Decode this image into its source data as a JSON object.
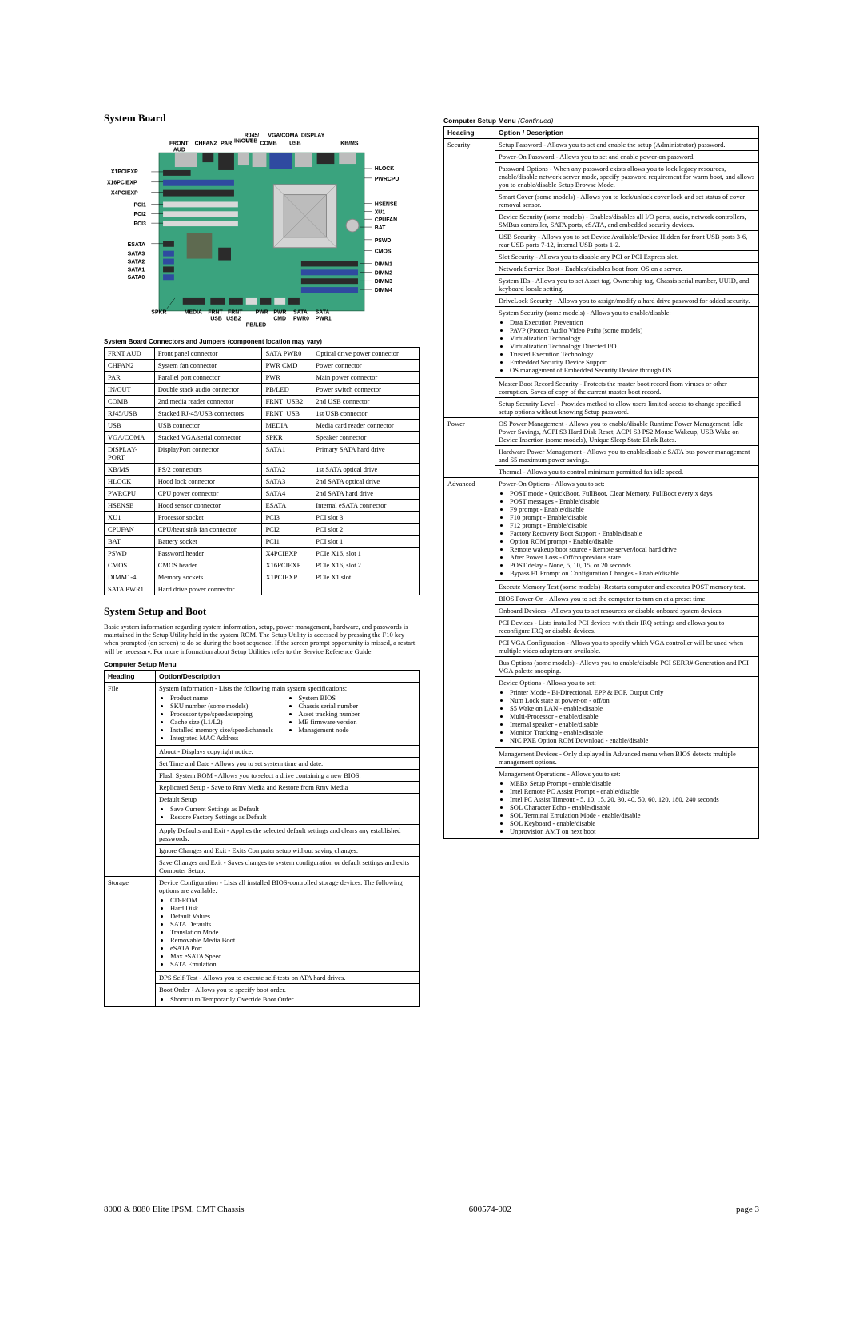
{
  "colors": {
    "board_pcb": "#3aa37e",
    "board_pcb_dark": "#2b7355",
    "chip_large": "#5e6a50",
    "chip_small": "#2b2b2b",
    "slot_blue": "#2f4aa0",
    "slot_black": "#2a2a2a",
    "slot_white": "#d9d9d9",
    "port_silver": "#bcbcbc",
    "battery": "#c8c8c8",
    "heatsink": "#d4d4d4",
    "text": "#000000",
    "bg": "#ffffff",
    "border": "#000000"
  },
  "left": {
    "section_title": "System Board",
    "board_caption": "System Board Connectors and Jumpers (component location may vary)",
    "board_labels_top": [
      "RJ45/",
      "USB",
      "VGA/COMA",
      "DISPLAY"
    ],
    "board_labels_top2": [
      "FRONT",
      "CHFAN2",
      "PAR",
      "IN/OUT",
      "COMB",
      "USB",
      "KB/MS"
    ],
    "board_labels_pre": "AUD",
    "board_labels_left": [
      "X1PCIEXP",
      "X16PCIEXP",
      "X4PCIEXP",
      "PCI1",
      "PCI2",
      "PCI3",
      "ESATA",
      "SATA3",
      "SATA2",
      "SATA1",
      "SATA0",
      "SPKR"
    ],
    "board_labels_right": [
      "HLOCK",
      "PWRCPU",
      "HSENSE",
      "XU1",
      "CPUFAN",
      "BAT",
      "PSWD",
      "CMOS",
      "DIMM1",
      "DIMM2",
      "DIMM3",
      "DIMM4"
    ],
    "board_labels_bottom": [
      "MEDIA",
      "FRNT",
      "FRNT",
      "PWR",
      "PWR",
      "SATA",
      "SATA"
    ],
    "board_labels_bottom2": [
      "USB",
      "USB2",
      "CMD",
      "PWR0",
      "PWR1"
    ],
    "board_labels_bottom3": "PB/LED",
    "connectors": [
      [
        "FRNT AUD",
        "Front panel connector",
        "SATA PWR0",
        "Optical drive power connector"
      ],
      [
        "CHFAN2",
        "System fan connector",
        "PWR CMD",
        "Power connector"
      ],
      [
        "PAR",
        "Parallel port connector",
        "PWR",
        "Main power connector"
      ],
      [
        "IN/OUT",
        "Double stack audio connector",
        "PB/LED",
        "Power switch connector"
      ],
      [
        "COMB",
        "2nd media reader connector",
        "FRNT_USB2",
        "2nd USB connector"
      ],
      [
        "RJ45/USB",
        "Stacked RJ-45/USB connectors",
        "FRNT_USB",
        "1st USB connector"
      ],
      [
        "USB",
        "USB connector",
        "MEDIA",
        "Media card reader connector"
      ],
      [
        "VGA/COMA",
        "Stacked VGA/serial connector",
        "SPKR",
        "Speaker connector"
      ],
      [
        "DISPLAY-PORT",
        "DisplayPort connector",
        "SATA1",
        "Primary SATA hard drive"
      ],
      [
        "KB/MS",
        "PS/2 connectors",
        "SATA2",
        "1st SATA optical drive"
      ],
      [
        "HLOCK",
        "Hood lock connector",
        "SATA3",
        "2nd SATA optical drive"
      ],
      [
        "PWRCPU",
        "CPU power connector",
        "SATA4",
        "2nd SATA hard drive"
      ],
      [
        "HSENSE",
        "Hood sensor connector",
        "ESATA",
        "Internal eSATA connector"
      ],
      [
        "XU1",
        "Processor socket",
        "PCI3",
        "PCI slot 3"
      ],
      [
        "CPUFAN",
        "CPU/heat sink fan connector",
        "PCI2",
        "PCI slot 2"
      ],
      [
        "BAT",
        "Battery socket",
        "PCI1",
        "PCI slot 1"
      ],
      [
        "PSWD",
        "Password header",
        "X4PCIEXP",
        "PCIe X16, slot 1"
      ],
      [
        "CMOS",
        "CMOS header",
        "X16PCIEXP",
        "PCIe X16, slot 2"
      ],
      [
        "DIMM1-4",
        "Memory sockets",
        "X1PCIEXP",
        "PCIe X1 slot"
      ],
      [
        "SATA PWR1",
        "Hard drive power connector",
        "",
        ""
      ]
    ],
    "setup_title": "System Setup and Boot",
    "setup_body": "Basic system information regarding system information, setup, power management, hardware, and passwords is maintained in the Setup Utility held in the system ROM. The Setup Utility is accessed by pressing the F10 key when prompted (on screen) to do so during the boot sequence. If the screen prompt opportunity is missed, a restart will be necessary. For more information about Setup Utilities refer to the Service Reference Guide.",
    "setup_body_italic": "Service Reference Guide.",
    "menu_title": "Computer Setup Menu",
    "th_heading": "Heading",
    "th_option": "Option/Description",
    "rows": [
      {
        "heading": "File",
        "cells": [
          {
            "lead": "System Information - Lists the following main system specifications:",
            "cols": [
              [
                "Product name",
                "SKU number (some models)",
                "Processor type/speed/stepping",
                "Cache size (L1/L2)",
                "Installed memory size/speed/channels",
                "Integrated MAC Address"
              ],
              [
                "System BIOS",
                "Chassis serial number",
                "Asset tracking number",
                "ME firmware version",
                "Management node"
              ]
            ]
          },
          {
            "lead": "About - Displays copyright notice."
          },
          {
            "lead": "Set Time and Date - Allows you to set system time and date."
          },
          {
            "lead": "Flash System ROM - Allows you to select a drive containing a new BIOS."
          },
          {
            "lead": "Replicated Setup - Save to Rmv Media and Restore from Rmv Media"
          },
          {
            "lead": "Default Setup",
            "bullets": [
              "Save Current Settings as Default",
              "Restore Factory Settings as Default"
            ]
          },
          {
            "lead": "Apply Defaults and Exit - Applies the selected default settings and clears any established passwords."
          },
          {
            "lead": "Ignore Changes and Exit - Exits Computer setup without saving changes."
          },
          {
            "lead": "Save Changes and Exit - Saves changes to system configuration or default settings and exits Computer Setup."
          }
        ]
      },
      {
        "heading": "Storage",
        "cells": [
          {
            "lead": "Device Configuration - Lists all installed BIOS-controlled storage devices. The following options are available:",
            "bullets": [
              "CD-ROM",
              "Hard Disk",
              "Default Values",
              "SATA Defaults",
              "Translation Mode",
              "Removable Media Boot",
              "eSATA Port",
              "Max eSATA Speed",
              "SATA Emulation"
            ]
          },
          {
            "lead": "DPS Self-Test - Allows you to execute self-tests on ATA hard drives."
          },
          {
            "lead": "Boot Order - Allows you to specify boot order.",
            "bullets": [
              "Shortcut to Temporarily Override Boot Order"
            ]
          }
        ]
      }
    ]
  },
  "right": {
    "menu_title": "Computer Setup Menu ",
    "menu_cont": "(Continued)",
    "th_heading": "Heading",
    "th_option": "Option / Description",
    "rows": [
      {
        "heading": "Security",
        "cells": [
          {
            "lead": "Setup Password - Allows you to set and enable the setup (Administrator) password."
          },
          {
            "lead": "Power-On Password - Allows you to set and enable power-on password."
          },
          {
            "lead": "Password Options - When any password exists allows you to lock legacy resources, enable/disable network server mode, specify password requirement for warm boot, and allows you to enable/disable Setup Browse Mode."
          },
          {
            "lead": "Smart Cover (some models) - Allows you to lock/unlock cover lock and set status of cover removal sensor."
          },
          {
            "lead": "Device Security (some models) - Enables/disables all I/O ports, audio, network controllers, SMBus controller, SATA ports, eSATA, and embedded security devices."
          },
          {
            "lead": "USB Security - Allows you to set Device Available/Device Hidden for front USB ports 3-6, rear USB ports 7-12, internal USB ports 1-2."
          },
          {
            "lead": "Slot Security - Allows you to disable any PCI or PCI Express slot."
          },
          {
            "lead": "Network Service Boot - Enables/disables boot from OS on a server."
          },
          {
            "lead": "System IDs - Allows you to set Asset tag, Ownership tag, Chassis serial number, UUID, and keyboard locale setting."
          },
          {
            "lead": "DriveLock Security - Allows you to assign/modify a hard drive password for added security."
          },
          {
            "lead": "System Security (some models) - Allows you to enable/disable:",
            "bullets": [
              "Data Execution Prevention",
              "PAVP (Protect Audio Video Path) (some models)",
              "Virtualization Technology",
              "Virtualization Technology Directed I/O",
              "Trusted Execution Technology",
              "Embedded Security Device Support",
              "OS management of Embedded Security Device through OS"
            ]
          },
          {
            "lead": "Master Boot Record Security - Protects the master boot record from viruses or other corruption. Saves of copy of the current master boot record."
          },
          {
            "lead": "Setup Security Level - Provides method to allow users limited access to change specified setup options without knowing Setup password."
          }
        ]
      },
      {
        "heading": "Power",
        "cells": [
          {
            "lead": "OS Power Management - Allows you to enable/disable Runtime Power Management, Idle Power Savings, ACPI S3 Hard Disk Reset, ACPI S3 PS2 Mouse Wakeup, USB Wake on Device Insertion (some models), Unique Sleep State Blink Rates."
          },
          {
            "lead": "Hardware Power Management - Allows you to enable/disable SATA bus power management and S5 maximum power savings."
          },
          {
            "lead": "Thermal - Allows you to control minimum permitted fan idle speed."
          }
        ]
      },
      {
        "heading": "Advanced",
        "cells": [
          {
            "lead": "Power-On Options - Allows you to set:",
            "bullets": [
              "POST mode - QuickBoot, FullBoot, Clear Memory, FullBoot every x days",
              "POST messages - Enable/disable",
              "F9 prompt - Enable/disable",
              "F10 prompt - Enable/disable",
              "F12 prompt - Enable/disable",
              "Factory Recovery Boot Support - Enable/disable",
              "Option ROM prompt - Enable/disable",
              "Remote wakeup boot source - Remote server/local hard drive",
              "After Power Loss - Off/on/previous state",
              "POST delay - None, 5, 10, 15, or 20 seconds",
              "Bypass F1 Prompt on Configuration Changes - Enable/disable"
            ]
          },
          {
            "lead": "Execute Memory Test (some models) -Restarts computer and executes POST memory test."
          },
          {
            "lead": "BIOS Power-On - Allows you to set the computer to turn on at a preset time."
          },
          {
            "lead": "Onboard Devices - Allows you to set resources or disable onboard system devices."
          },
          {
            "lead": "PCI Devices - Lists installed PCI devices with their IRQ settings and allows you to reconfigure IRQ or disable devices."
          },
          {
            "lead": "PCI VGA Configuration - Allows you to specify which VGA controller will be used when multiple video adapters are available."
          },
          {
            "lead": "Bus Options (some models) - Allows you to enable/disable PCI SERR# Generation and PCI VGA palette snooping."
          },
          {
            "lead": "Device Options - Allows you to set:",
            "bullets": [
              "Printer Mode - Bi-Directional, EPP & ECP, Output Only",
              "Num Lock state at power-on - off/on",
              "S5 Wake on LAN - enable/disable",
              "Multi-Processor - enable/disable",
              "Internal speaker - enable/disable",
              "Monitor Tracking - enable/disable",
              "NIC PXE Option ROM Download - enable/disable"
            ]
          },
          {
            "lead": "Management Devices - Only displayed in Advanced menu when BIOS detects multiple management options."
          },
          {
            "lead": "Management Operations - Allows you to set:",
            "bullets": [
              "MEBx Setup Prompt - enable/disable",
              "Intel Remote PC Assist Prompt - enable/disable",
              "Intel PC Assist Timeout - 5, 10, 15, 20, 30, 40, 50, 60, 120, 180, 240 seconds",
              "SOL Character Echo - enable/disable",
              "SOL Terminal Emulation Mode - enable/disable",
              "SOL Keyboard - enable/disable",
              "Unprovision AMT on next boot"
            ]
          }
        ]
      }
    ]
  },
  "footer": {
    "left": "8000 & 8080 Elite IPSM, CMT Chassis",
    "center": "600574-002",
    "right": "page 3"
  }
}
